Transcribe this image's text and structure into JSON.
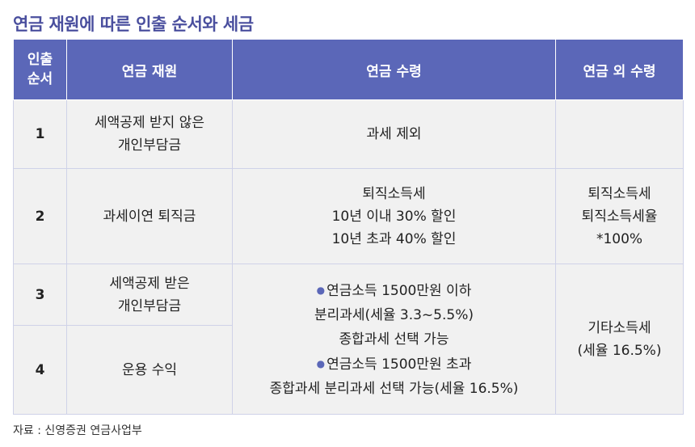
{
  "title": "연금 재원에 따른 인출 순서와 세금",
  "headers": {
    "order": "인출\n순서",
    "source": "연금 재원",
    "pension_receipt": "연금 수령",
    "non_pension_receipt": "연금 외 수령"
  },
  "rows": [
    {
      "order": "1",
      "source": "세액공제 받지 않은\n개인부담금",
      "pension_receipt": "과세 제외",
      "non_pension_receipt": ""
    },
    {
      "order": "2",
      "source": "과세이연 퇴직금",
      "pension_receipt": "퇴직소득세\n10년 이내 30% 할인\n10년 초과 40% 할인",
      "non_pension_receipt": "퇴직소득세\n퇴직소득세율\n*100%"
    },
    {
      "order": "3",
      "source": "세액공제 받은\n개인부담금"
    },
    {
      "order": "4",
      "source": "운용 수익"
    }
  ],
  "merged_pension_receipt": {
    "bullet_1": "연금소득 1500만원 이하",
    "text_1": "분리과세(세율 3.3~5.5%)\n종합과세 선택 가능",
    "bullet_2": "연금소득 1500만원 초과",
    "text_2": "종합과세 분리과세 선택 가능(세율 16.5%)"
  },
  "merged_non_pension_receipt": "기타소득세\n(세율 16.5%)",
  "footer": "자료 : 신영증권 연금사업부"
}
